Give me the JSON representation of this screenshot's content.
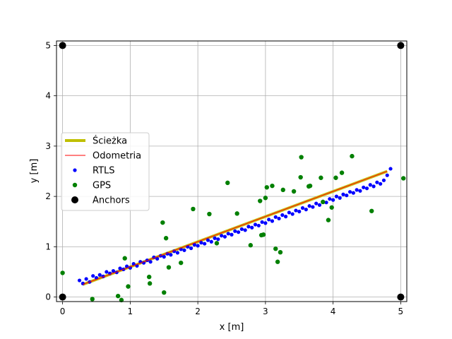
{
  "chart_data": {
    "type": "scatter",
    "xlabel": "x [m]",
    "ylabel": "y [m]",
    "xlim": [
      -0.09,
      5.09
    ],
    "ylim": [
      -0.09,
      5.09
    ],
    "xticks": [
      0,
      1,
      2,
      3,
      4,
      5
    ],
    "yticks": [
      0,
      1,
      2,
      3,
      4,
      5
    ],
    "grid": true,
    "legend_position": "center-left",
    "series": [
      {
        "name": "Ścieżka",
        "kind": "line",
        "color": "#bfbf00",
        "x": [
          0.3,
          4.8
        ],
        "y": [
          0.25,
          2.5
        ]
      },
      {
        "name": "Odometria",
        "kind": "line",
        "color": "#ff0000",
        "x": [
          0.3,
          4.8
        ],
        "y": [
          0.25,
          2.5
        ]
      },
      {
        "name": "RTLS",
        "kind": "scatter",
        "color": "#0000ff",
        "x": [
          0.25,
          0.3,
          0.35,
          0.4,
          0.45,
          0.5,
          0.55,
          0.6,
          0.65,
          0.7,
          0.75,
          0.8,
          0.85,
          0.9,
          0.95,
          1.0,
          1.05,
          1.1,
          1.15,
          1.2,
          1.25,
          1.3,
          1.35,
          1.4,
          1.45,
          1.5,
          1.55,
          1.6,
          1.65,
          1.7,
          1.75,
          1.8,
          1.85,
          1.9,
          1.95,
          2.0,
          2.05,
          2.1,
          2.15,
          2.2,
          2.25,
          2.3,
          2.35,
          2.4,
          2.45,
          2.5,
          2.55,
          2.6,
          2.65,
          2.7,
          2.75,
          2.8,
          2.85,
          2.9,
          2.95,
          3.0,
          3.05,
          3.1,
          3.15,
          3.2,
          3.25,
          3.3,
          3.35,
          3.4,
          3.45,
          3.5,
          3.55,
          3.6,
          3.65,
          3.7,
          3.75,
          3.8,
          3.85,
          3.9,
          3.95,
          4.0,
          4.05,
          4.1,
          4.15,
          4.2,
          4.25,
          4.3,
          4.35,
          4.4,
          4.45,
          4.5,
          4.55,
          4.6,
          4.65,
          4.7,
          4.75,
          4.8,
          4.85
        ],
        "y": [
          0.33,
          0.27,
          0.36,
          0.3,
          0.42,
          0.38,
          0.44,
          0.41,
          0.5,
          0.47,
          0.52,
          0.49,
          0.57,
          0.55,
          0.61,
          0.58,
          0.66,
          0.62,
          0.7,
          0.68,
          0.73,
          0.7,
          0.79,
          0.76,
          0.82,
          0.8,
          0.86,
          0.84,
          0.91,
          0.88,
          0.95,
          0.93,
          1.0,
          0.97,
          1.04,
          1.02,
          1.08,
          1.06,
          1.13,
          1.1,
          1.17,
          1.15,
          1.22,
          1.2,
          1.26,
          1.24,
          1.31,
          1.29,
          1.35,
          1.33,
          1.4,
          1.38,
          1.44,
          1.42,
          1.49,
          1.47,
          1.54,
          1.51,
          1.59,
          1.56,
          1.63,
          1.6,
          1.68,
          1.65,
          1.72,
          1.7,
          1.77,
          1.74,
          1.81,
          1.79,
          1.86,
          1.83,
          1.9,
          1.88,
          1.95,
          1.93,
          2.0,
          1.97,
          2.04,
          2.02,
          2.09,
          2.07,
          2.13,
          2.11,
          2.18,
          2.16,
          2.23,
          2.2,
          2.28,
          2.25,
          2.32,
          2.42,
          2.55
        ]
      },
      {
        "name": "GPS",
        "kind": "scatter",
        "color": "#008000",
        "x": [
          0.0,
          0.44,
          0.82,
          0.87,
          0.92,
          0.97,
          1.28,
          1.29,
          1.48,
          1.5,
          1.53,
          1.57,
          1.75,
          1.93,
          2.17,
          2.28,
          2.44,
          2.58,
          2.78,
          2.92,
          2.94,
          2.97,
          3.0,
          3.02,
          3.1,
          3.15,
          3.18,
          3.22,
          3.26,
          3.42,
          3.52,
          3.53,
          3.64,
          3.66,
          3.82,
          3.85,
          3.93,
          3.98,
          4.04,
          4.13,
          4.28,
          4.57,
          5.04
        ],
        "y": [
          0.48,
          -0.04,
          0.02,
          -0.06,
          0.77,
          0.21,
          0.4,
          0.27,
          1.48,
          0.09,
          1.17,
          0.59,
          0.68,
          1.75,
          1.65,
          1.07,
          2.27,
          1.66,
          1.03,
          1.91,
          1.23,
          1.24,
          1.97,
          2.18,
          2.21,
          0.96,
          0.7,
          0.89,
          2.13,
          2.1,
          2.38,
          2.78,
          2.2,
          2.21,
          2.37,
          1.89,
          1.53,
          1.78,
          2.37,
          2.47,
          2.8,
          1.71,
          2.36
        ]
      },
      {
        "name": "Anchors",
        "kind": "scatter",
        "color": "#000000",
        "x": [
          0,
          5,
          0,
          5
        ],
        "y": [
          5,
          5,
          0,
          0
        ]
      }
    ]
  }
}
